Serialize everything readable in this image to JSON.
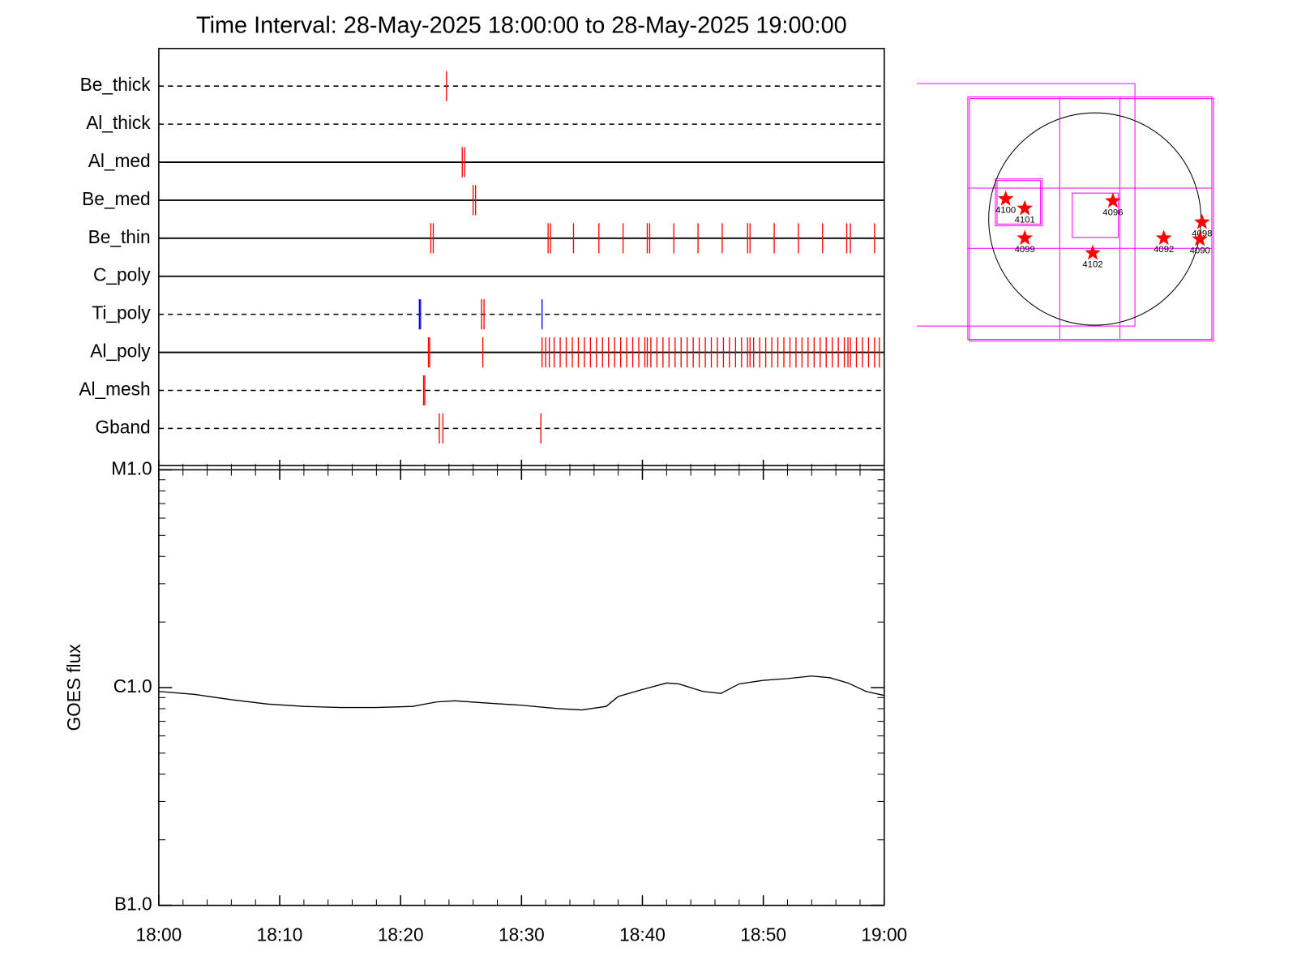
{
  "chart_data": [
    {
      "type": "event",
      "title": "Time Interval: 28-May-2025 18:00:00 to 28-May-2025 19:00:00",
      "xlim": [
        0,
        60
      ],
      "series": [
        {
          "name": "Be_thick",
          "linestyle": "dashed",
          "color": "#ff0000",
          "events": [
            23.8
          ]
        },
        {
          "name": "Al_thick",
          "linestyle": "dashed",
          "color": "#ff0000",
          "events": []
        },
        {
          "name": "Al_med",
          "linestyle": "solid",
          "color": "#ff0000",
          "events": [
            25.1,
            25.3
          ]
        },
        {
          "name": "Be_med",
          "linestyle": "solid",
          "color": "#ff0000",
          "events": [
            26.0,
            26.2
          ]
        },
        {
          "name": "Be_thin",
          "linestyle": "solid",
          "color": "#ff0000",
          "events": [
            22.5,
            22.7,
            32.2,
            32.4,
            34.3,
            36.4,
            38.4,
            40.4,
            40.6,
            42.6,
            44.6,
            46.6,
            48.7,
            48.9,
            50.9,
            52.9,
            54.9,
            56.9,
            57.2,
            59.2
          ]
        },
        {
          "name": "C_poly",
          "linestyle": "solid",
          "color": "#ff0000",
          "events": []
        },
        {
          "name": "Ti_poly",
          "linestyle": "dashed",
          "color": "#ff0000",
          "events": [
            21.55,
            21.65,
            26.7,
            26.9,
            31.7
          ],
          "event_colors": [
            "#0000ff",
            "#0000ff",
            "#ff0000",
            "#ff0000",
            "#0000ff"
          ]
        },
        {
          "name": "Al_poly",
          "linestyle": "solid",
          "color": "#ff0000",
          "events": [
            22.3,
            22.4,
            26.8,
            31.7,
            32.0,
            32.3,
            32.7,
            33.2,
            33.7,
            34.2,
            34.7,
            35.2,
            35.7,
            36.2,
            36.7,
            37.2,
            37.7,
            38.2,
            38.7,
            39.2,
            39.7,
            40.2,
            40.4,
            40.7,
            41.2,
            41.7,
            42.2,
            42.7,
            43.2,
            43.7,
            44.2,
            44.7,
            45.2,
            45.7,
            46.2,
            46.7,
            47.2,
            47.7,
            48.2,
            48.7,
            48.9,
            49.2,
            49.7,
            50.2,
            50.7,
            51.2,
            51.7,
            52.2,
            52.7,
            53.2,
            53.7,
            54.2,
            54.7,
            55.2,
            55.7,
            56.2,
            56.7,
            57.0,
            57.2,
            57.7,
            58.2,
            58.7,
            59.2,
            59.6
          ]
        },
        {
          "name": "Al_mesh",
          "linestyle": "dashed",
          "color": "#ff0000",
          "events": [
            21.9,
            22.0
          ]
        },
        {
          "name": "Gband",
          "linestyle": "dashed",
          "color": "#ff0000",
          "events": [
            23.2,
            23.5,
            31.6
          ]
        }
      ]
    },
    {
      "type": "line",
      "ylabel": "GOES flux",
      "log_scale": true,
      "color": "#000000",
      "xlim": [
        0,
        60
      ],
      "xticks": [
        {
          "value": 0,
          "label": "18:00"
        },
        {
          "value": 10,
          "label": "18:10"
        },
        {
          "value": 20,
          "label": "18:20"
        },
        {
          "value": 30,
          "label": "18:30"
        },
        {
          "value": 40,
          "label": "18:40"
        },
        {
          "value": 50,
          "label": "18:50"
        },
        {
          "value": 60,
          "label": "19:00"
        }
      ],
      "ylim": [
        1e-07,
        1e-05
      ],
      "yticks": [
        {
          "value": 1e-07,
          "label": "B1.0"
        },
        {
          "value": 1e-06,
          "label": "C1.0"
        },
        {
          "value": 1e-05,
          "label": "M1.0"
        }
      ],
      "x": [
        0,
        3,
        6,
        9,
        12,
        15,
        18,
        21,
        23,
        24.5,
        27,
        30,
        33,
        35,
        37,
        38,
        40,
        42,
        43,
        45,
        46.5,
        48,
        50,
        52,
        54,
        55.5,
        57,
        58.5,
        60
      ],
      "values": [
        9.6e-07,
        9.3e-07,
        8.8e-07,
        8.4e-07,
        8.2e-07,
        8.1e-07,
        8.1e-07,
        8.2e-07,
        8.6e-07,
        8.7e-07,
        8.5e-07,
        8.3e-07,
        8e-07,
        7.9e-07,
        8.2e-07,
        9.1e-07,
        9.8e-07,
        1.05e-06,
        1.04e-06,
        9.6e-07,
        9.4e-07,
        1.04e-06,
        1.08e-06,
        1.1e-06,
        1.13e-06,
        1.11e-06,
        1.05e-06,
        9.6e-07,
        9.2e-07
      ]
    },
    {
      "type": "map",
      "color": "#ff0000",
      "stars": [
        {
          "label": "4100",
          "x": -0.84,
          "y": 0.19
        },
        {
          "label": "4101",
          "x": -0.66,
          "y": 0.1
        },
        {
          "label": "4096",
          "x": 0.17,
          "y": 0.17
        },
        {
          "label": "4099",
          "x": -0.66,
          "y": -0.18
        },
        {
          "label": "4102",
          "x": -0.02,
          "y": -0.32
        },
        {
          "label": "4092",
          "x": 0.65,
          "y": -0.18
        },
        {
          "label": "4098",
          "x": 1.01,
          "y": -0.03
        },
        {
          "label": "4090",
          "x": 0.99,
          "y": -0.19
        }
      ]
    }
  ]
}
